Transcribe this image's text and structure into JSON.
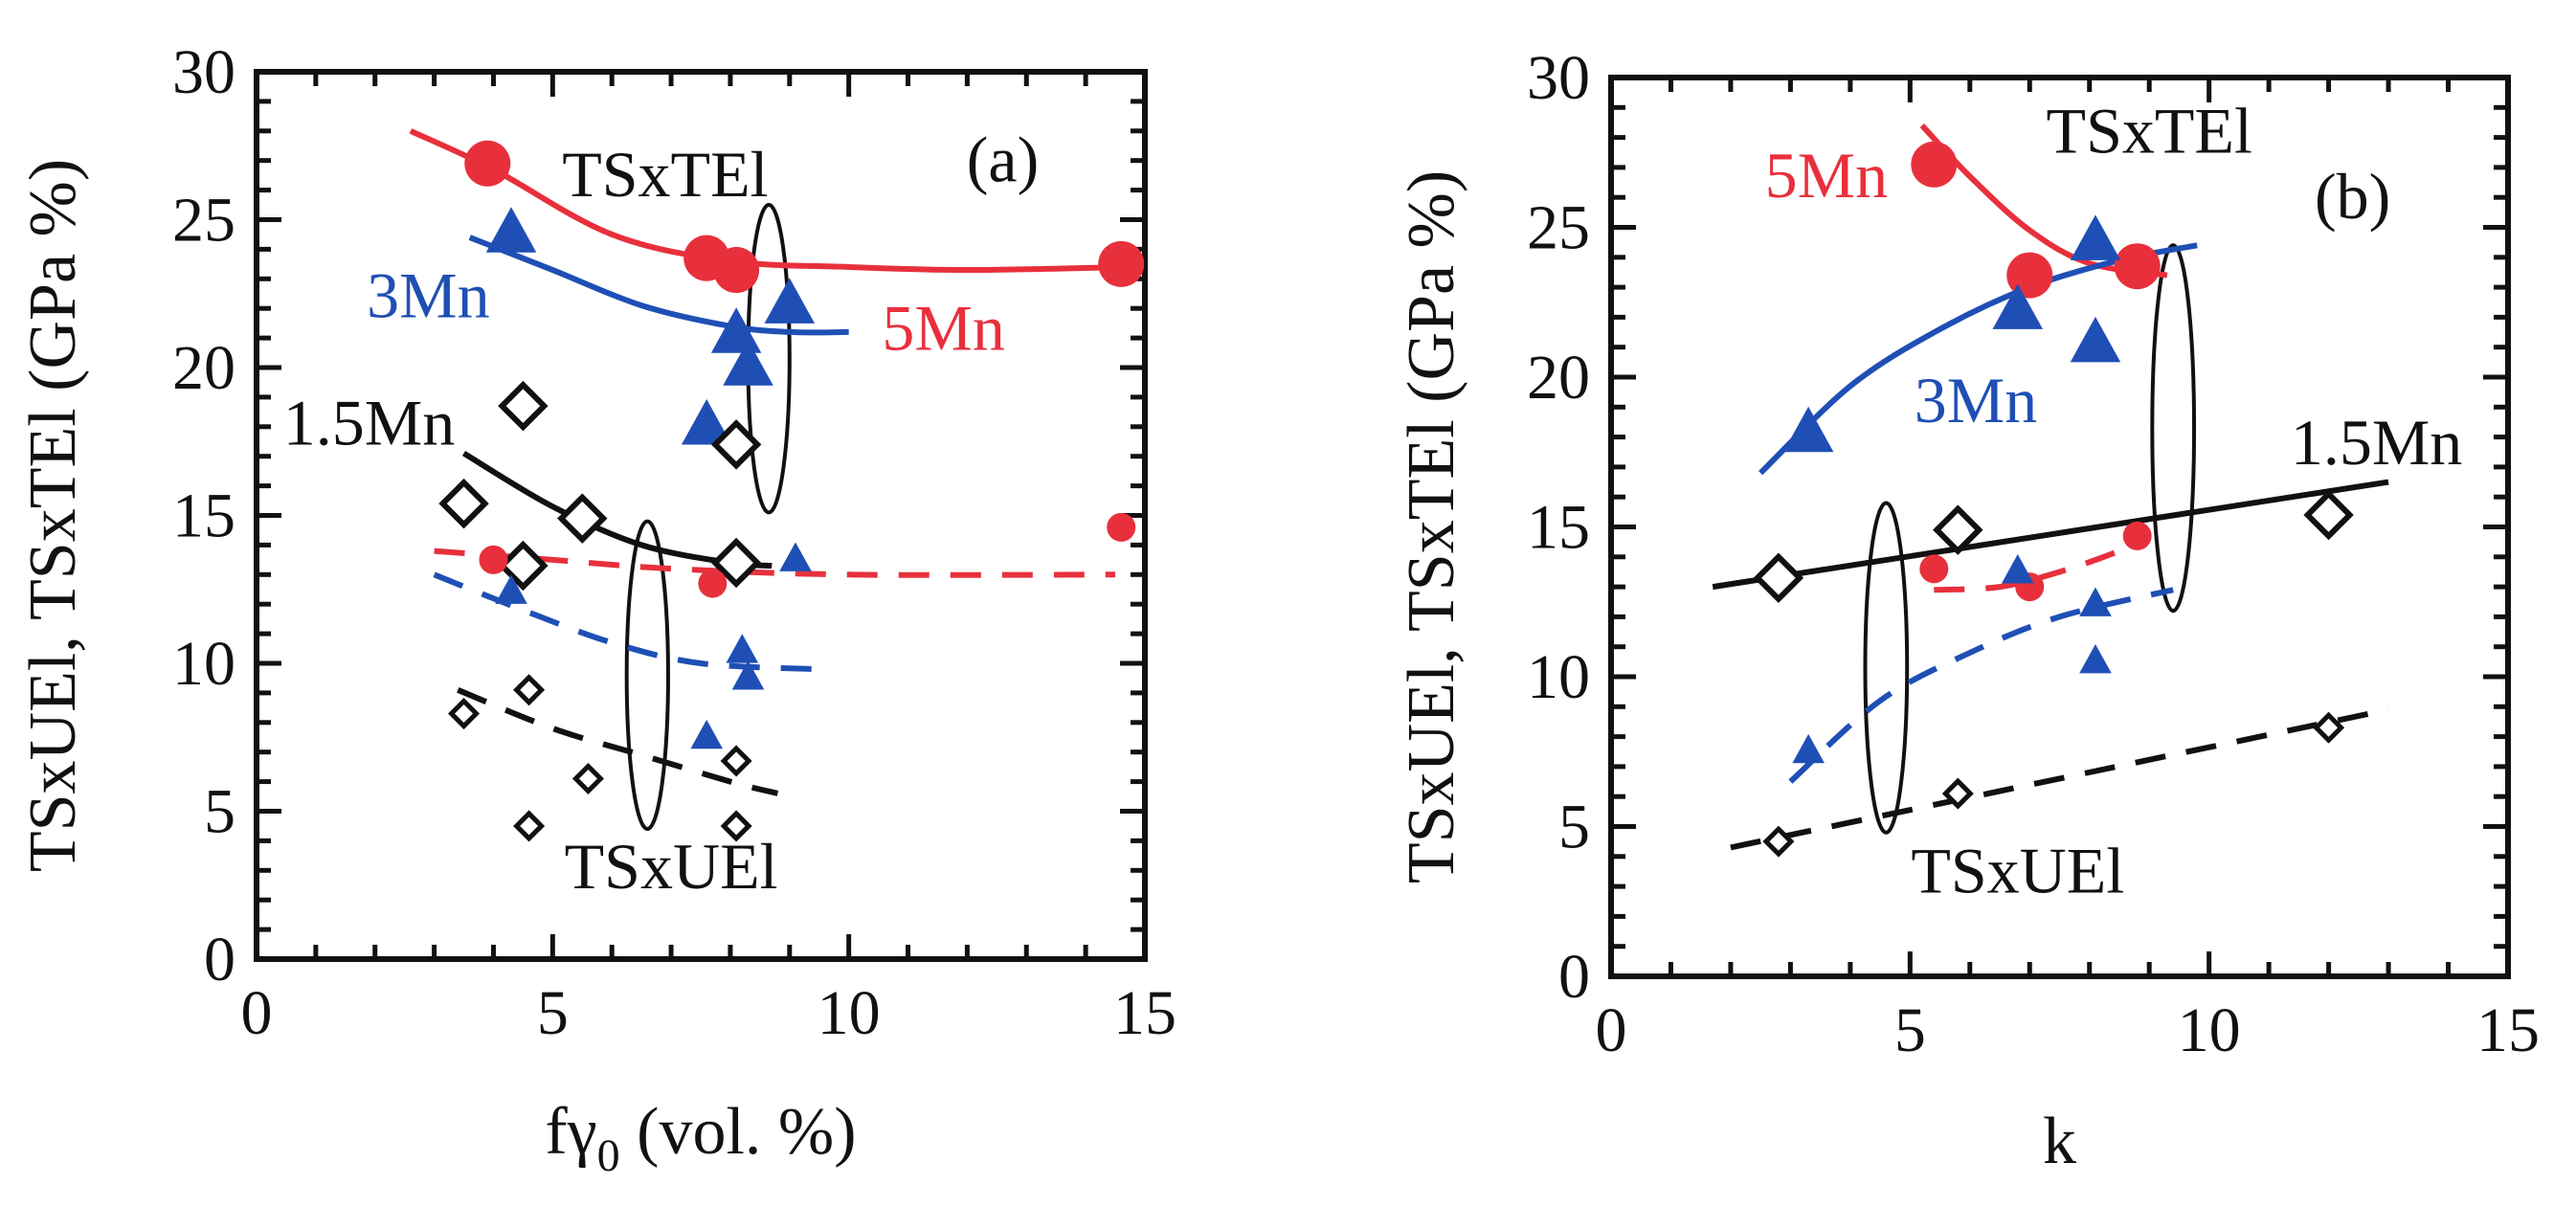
{
  "colors": {
    "red": "#e8303c",
    "blue": "#1f4fb5",
    "black": "#111111"
  },
  "chart_data": [
    {
      "type": "scatter",
      "panel_label": "(a)",
      "xlabel_main": "fγ",
      "xlabel_sub": "0",
      "xlabel_tail": " (vol. %)",
      "ylabel": "TSxUEl, TSxTEl (GPa %)",
      "xlim": [
        0,
        15
      ],
      "ylim": [
        0,
        30
      ],
      "xticks": [
        0,
        5,
        10,
        15
      ],
      "yticks": [
        0,
        5,
        10,
        15,
        20,
        25,
        30
      ],
      "series": [
        {
          "name": "5Mn TSxTEl",
          "color": "red",
          "marker": "circle-large",
          "points": [
            [
              3.9,
              26.9
            ],
            [
              7.6,
              23.7
            ],
            [
              8.1,
              23.3
            ],
            [
              14.6,
              23.5
            ]
          ]
        },
        {
          "name": "3Mn TSxTEl",
          "color": "blue",
          "marker": "triangle-large",
          "points": [
            [
              4.3,
              24.5
            ],
            [
              7.6,
              18.0
            ],
            [
              8.1,
              21.1
            ],
            [
              8.3,
              20.0
            ],
            [
              9.0,
              22.1
            ]
          ]
        },
        {
          "name": "1.5Mn TSxTEl",
          "color": "black",
          "marker": "diamond-large",
          "points": [
            [
              3.5,
              15.4
            ],
            [
              4.5,
              18.7
            ],
            [
              4.5,
              13.3
            ],
            [
              5.5,
              14.9
            ],
            [
              8.1,
              17.4
            ],
            [
              8.1,
              13.4
            ]
          ]
        },
        {
          "name": "5Mn TSxUEl",
          "color": "red",
          "marker": "circle-small",
          "points": [
            [
              4.0,
              13.5
            ],
            [
              7.7,
              12.7
            ],
            [
              14.6,
              14.6
            ]
          ]
        },
        {
          "name": "3Mn TSxUEl",
          "color": "blue",
          "marker": "triangle-small",
          "points": [
            [
              4.3,
              12.4
            ],
            [
              7.6,
              7.5
            ],
            [
              8.2,
              10.4
            ],
            [
              8.3,
              9.5
            ],
            [
              9.1,
              13.5
            ]
          ]
        },
        {
          "name": "1.5Mn TSxUEl",
          "color": "black",
          "marker": "diamond-small",
          "points": [
            [
              3.5,
              8.3
            ],
            [
              4.6,
              9.1
            ],
            [
              4.6,
              4.5
            ],
            [
              5.6,
              6.1
            ],
            [
              8.1,
              6.7
            ],
            [
              8.1,
              4.5
            ]
          ]
        }
      ],
      "fits": [
        {
          "name": "5Mn TSxTEl fit",
          "color": "red",
          "dash": false,
          "points": [
            [
              2.6,
              28.0
            ],
            [
              4.0,
              26.7
            ],
            [
              6.0,
              24.5
            ],
            [
              8.0,
              23.6
            ],
            [
              10.0,
              23.4
            ],
            [
              12.0,
              23.3
            ],
            [
              14.7,
              23.4
            ]
          ]
        },
        {
          "name": "3Mn TSxTEl fit",
          "color": "blue",
          "dash": false,
          "points": [
            [
              3.6,
              24.4
            ],
            [
              5.0,
              23.3
            ],
            [
              6.5,
              22.1
            ],
            [
              8.0,
              21.4
            ],
            [
              9.0,
              21.2
            ],
            [
              10.0,
              21.2
            ]
          ]
        },
        {
          "name": "1.5Mn TSxTEl fit",
          "color": "black",
          "dash": false,
          "points": [
            [
              3.5,
              17.1
            ],
            [
              5.0,
              15.3
            ],
            [
              6.5,
              14.0
            ],
            [
              8.0,
              13.4
            ],
            [
              8.7,
              13.3
            ]
          ]
        },
        {
          "name": "5Mn TSxUEl fit",
          "color": "red",
          "dash": true,
          "points": [
            [
              3.0,
              13.8
            ],
            [
              5.0,
              13.5
            ],
            [
              7.0,
              13.2
            ],
            [
              10.0,
              13.0
            ],
            [
              14.5,
              13.0
            ]
          ]
        },
        {
          "name": "3Mn TSxUEl fit",
          "color": "blue",
          "dash": true,
          "points": [
            [
              3.0,
              13.0
            ],
            [
              4.5,
              11.8
            ],
            [
              6.0,
              10.7
            ],
            [
              7.5,
              10.0
            ],
            [
              9.5,
              9.8
            ]
          ]
        },
        {
          "name": "1.5Mn TSxUEl fit",
          "color": "black",
          "dash": true,
          "points": [
            [
              3.4,
              9.1
            ],
            [
              5.0,
              7.8
            ],
            [
              6.5,
              6.9
            ],
            [
              8.0,
              6.0
            ],
            [
              8.8,
              5.6
            ]
          ]
        }
      ],
      "annotations": [
        {
          "text": "TSxTEl",
          "x": 6.9,
          "y": 25.8,
          "color": "black"
        },
        {
          "text": "(a)",
          "x": 12.6,
          "y": 26.3,
          "color": "black"
        },
        {
          "text": "3Mn",
          "x": 2.9,
          "y": 21.7,
          "color": "blue"
        },
        {
          "text": "5Mn",
          "x": 11.6,
          "y": 20.6,
          "color": "red"
        },
        {
          "text": "1.5Mn",
          "x": 1.9,
          "y": 17.4,
          "color": "black"
        },
        {
          "text": "TSxUEl",
          "x": 7.0,
          "y": 2.4,
          "color": "black"
        }
      ],
      "ellipses": [
        {
          "cx": 8.65,
          "cy": 20.3,
          "rx": 0.35,
          "ry": 5.2
        },
        {
          "cx": 6.6,
          "cy": 9.6,
          "rx": 0.35,
          "ry": 5.2
        }
      ]
    },
    {
      "type": "scatter",
      "panel_label": "(b)",
      "xlabel_main": "k",
      "xlabel_sub": "",
      "xlabel_tail": "",
      "ylabel": "TSxUEl, TSxTEl (GPa %)",
      "xlim": [
        0,
        15
      ],
      "ylim": [
        0,
        30
      ],
      "xticks": [
        0,
        5,
        10,
        15
      ],
      "yticks": [
        0,
        5,
        10,
        15,
        20,
        25,
        30
      ],
      "series": [
        {
          "name": "5Mn TSxTEl",
          "color": "red",
          "marker": "circle-large",
          "points": [
            [
              5.4,
              27.1
            ],
            [
              7.0,
              23.4
            ],
            [
              8.8,
              23.7
            ]
          ]
        },
        {
          "name": "3Mn TSxTEl",
          "color": "blue",
          "marker": "triangle-large",
          "points": [
            [
              3.3,
              18.1
            ],
            [
              6.8,
              22.2
            ],
            [
              8.1,
              24.5
            ],
            [
              8.1,
              21.1
            ]
          ]
        },
        {
          "name": "1.5Mn TSxTEl",
          "color": "black",
          "marker": "diamond-large",
          "points": [
            [
              2.8,
              13.3
            ],
            [
              5.8,
              14.9
            ],
            [
              12.0,
              15.4
            ]
          ]
        },
        {
          "name": "5Mn TSxUEl",
          "color": "red",
          "marker": "circle-small",
          "points": [
            [
              5.4,
              13.6
            ],
            [
              7.0,
              13.0
            ],
            [
              8.8,
              14.7
            ]
          ]
        },
        {
          "name": "3Mn TSxUEl",
          "color": "blue",
          "marker": "triangle-small",
          "points": [
            [
              3.3,
              7.5
            ],
            [
              6.8,
              13.5
            ],
            [
              8.1,
              12.4
            ],
            [
              8.1,
              10.5
            ]
          ]
        },
        {
          "name": "1.5Mn TSxUEl",
          "color": "black",
          "marker": "diamond-small",
          "points": [
            [
              2.8,
              4.5
            ],
            [
              5.8,
              6.1
            ],
            [
              12.0,
              8.3
            ]
          ]
        }
      ],
      "fits": [
        {
          "name": "5Mn TSxTEl fit",
          "color": "red",
          "dash": false,
          "points": [
            [
              5.2,
              28.4
            ],
            [
              6.0,
              26.7
            ],
            [
              7.0,
              24.9
            ],
            [
              8.0,
              23.8
            ],
            [
              9.3,
              23.4
            ]
          ]
        },
        {
          "name": "3Mn TSxTEl fit",
          "color": "blue",
          "dash": false,
          "points": [
            [
              2.5,
              16.8
            ],
            [
              4.0,
              19.7
            ],
            [
              5.5,
              21.6
            ],
            [
              7.0,
              23.0
            ],
            [
              8.5,
              23.9
            ],
            [
              9.8,
              24.4
            ]
          ]
        },
        {
          "name": "1.5Mn TSxTEl fit",
          "color": "black",
          "dash": false,
          "points": [
            [
              1.7,
              13.0
            ],
            [
              13.0,
              16.5
            ]
          ]
        },
        {
          "name": "5Mn TSxUEl fit",
          "color": "red",
          "dash": true,
          "points": [
            [
              5.4,
              12.9
            ],
            [
              6.5,
              13.0
            ],
            [
              7.5,
              13.5
            ],
            [
              8.5,
              14.2
            ],
            [
              9.0,
              14.7
            ]
          ]
        },
        {
          "name": "3Mn TSxUEl fit",
          "color": "blue",
          "dash": true,
          "points": [
            [
              3.0,
              6.5
            ],
            [
              4.5,
              9.2
            ],
            [
              6.0,
              10.8
            ],
            [
              7.5,
              12.0
            ],
            [
              9.4,
              12.9
            ]
          ]
        },
        {
          "name": "1.5Mn TSxUEl fit",
          "color": "black",
          "dash": true,
          "points": [
            [
              2.0,
              4.3
            ],
            [
              13.0,
              8.9
            ]
          ]
        }
      ],
      "annotations": [
        {
          "text": "5Mn",
          "x": 3.6,
          "y": 26.0,
          "color": "red"
        },
        {
          "text": "TSxTEl",
          "x": 9.0,
          "y": 27.5,
          "color": "black"
        },
        {
          "text": "(b)",
          "x": 12.4,
          "y": 25.3,
          "color": "black"
        },
        {
          "text": "3Mn",
          "x": 6.1,
          "y": 18.5,
          "color": "blue"
        },
        {
          "text": "1.5Mn",
          "x": 12.8,
          "y": 17.1,
          "color": "black"
        },
        {
          "text": "TSxUEl",
          "x": 6.8,
          "y": 2.8,
          "color": "black"
        }
      ],
      "ellipses": [
        {
          "cx": 9.4,
          "cy": 18.3,
          "rx": 0.35,
          "ry": 6.1
        },
        {
          "cx": 4.6,
          "cy": 10.3,
          "rx": 0.35,
          "ry": 5.5
        }
      ]
    }
  ]
}
